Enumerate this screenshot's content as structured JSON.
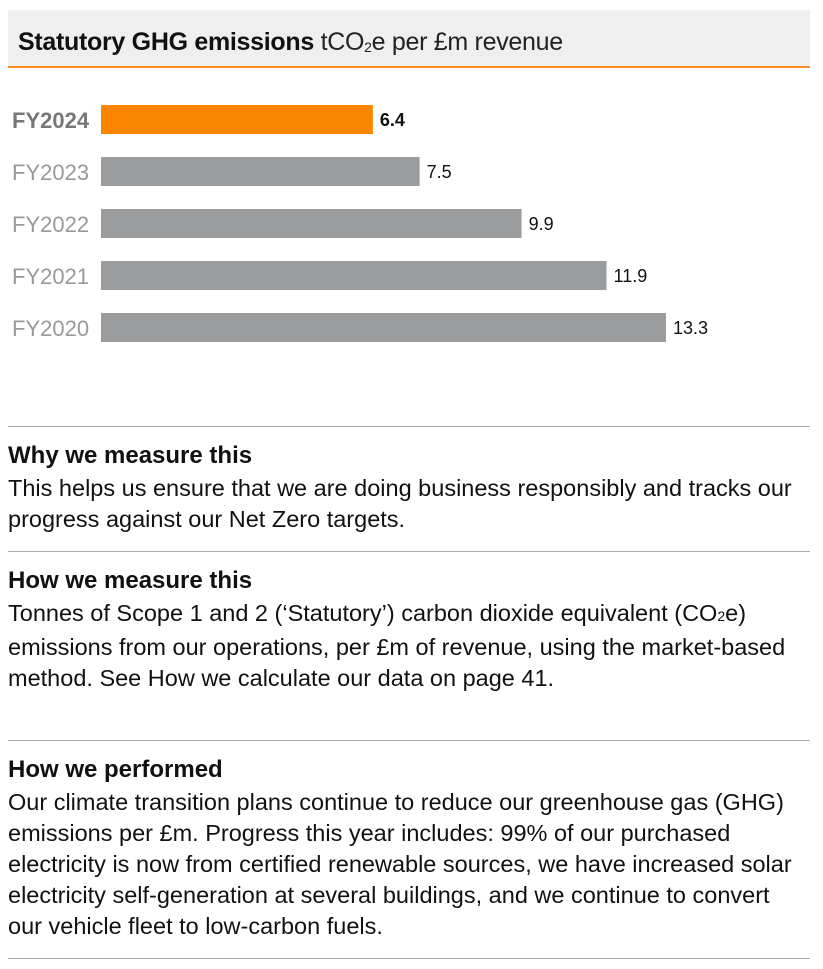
{
  "header": {
    "title_bold": "Statutory GHG emissions",
    "unit_pre": "tCO",
    "unit_sub": "2",
    "unit_post": "e per £m revenue"
  },
  "colors": {
    "highlight": "#fb8500",
    "bar": "#9b9c9e",
    "accent_line": "#f98a1f"
  },
  "chart_data": {
    "type": "bar",
    "orientation": "horizontal",
    "title": "Statutory GHG emissions tCO2e per £m revenue",
    "categories": [
      "FY2024",
      "FY2023",
      "FY2022",
      "FY2021",
      "FY2020"
    ],
    "values": [
      6.4,
      7.5,
      9.9,
      11.9,
      13.3
    ],
    "labels": [
      "6.4",
      "7.5",
      "9.9",
      "11.9",
      "13.3"
    ],
    "highlight_index": 0,
    "xlim": [
      0,
      13.3
    ],
    "grid": false,
    "xlabel": "",
    "ylabel": ""
  },
  "sections": [
    {
      "heading": "Why we measure this",
      "body": "This helps us ensure that we are doing business responsibly and tracks our progress against our Net Zero targets."
    },
    {
      "heading": "How we measure this",
      "body_pre": "Tonnes of Scope 1 and 2 (‘Statutory’) carbon dioxide equivalent (CO",
      "body_sub": "2",
      "body_post": "e) emissions from our operations, per £m of revenue, using the market-based method. See How we calculate our data on page 41."
    },
    {
      "heading": "How we performed",
      "body": "Our climate transition plans continue to reduce our greenhouse gas (GHG) emissions per £m. Progress this year includes: 99% of our purchased electricity is now from certified renewable sources, we have increased solar electricity self-generation at several buildings, and we continue to convert our vehicle fleet to low-carbon fuels."
    }
  ]
}
